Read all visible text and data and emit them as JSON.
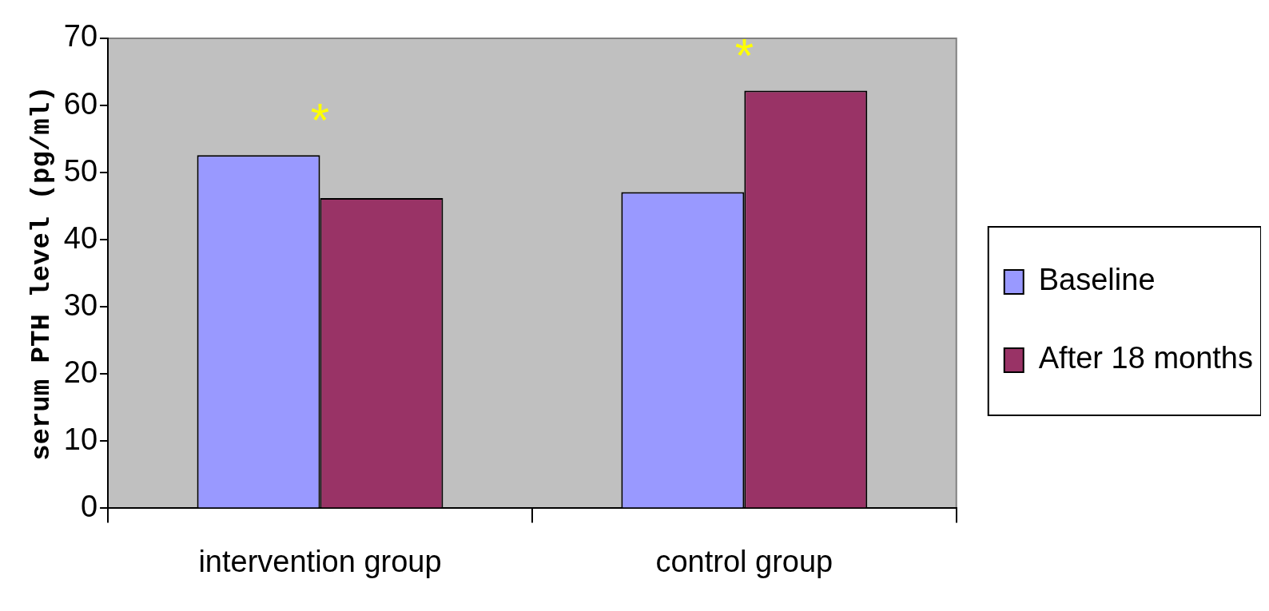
{
  "chart_data": {
    "type": "bar",
    "ylabel": "serum PTH level (pg/ml)",
    "categories": [
      "intervention group",
      "control group"
    ],
    "series": [
      {
        "name": "Baseline",
        "color": "#9999ff",
        "values": [
          52.6,
          47.1
        ]
      },
      {
        "name": "After 18 months",
        "color": "#993366",
        "values": [
          46.2,
          62.2
        ]
      }
    ],
    "ylim": [
      0,
      70
    ],
    "yticks": [
      0,
      10,
      20,
      30,
      40,
      50,
      60,
      70
    ],
    "grid": false,
    "legend": "right",
    "annotations": [
      "*",
      "*"
    ]
  }
}
